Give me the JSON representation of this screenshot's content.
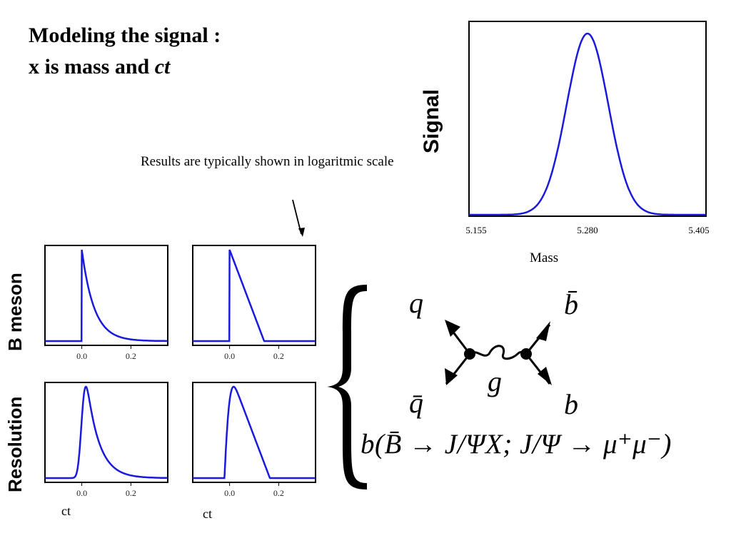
{
  "title": {
    "line1": "Modeling the signal :",
    "line2_prefix": "x is mass and ",
    "line2_italic": "ct"
  },
  "note": "Results are  typically shown in logaritmic scale",
  "labels": {
    "signal": "Signal",
    "mass": "Mass",
    "b_meson": "B meson",
    "resolution": "Resolution",
    "ct_left": "ct",
    "ct_right": "ct"
  },
  "formula": {
    "q": "q",
    "bbar": "b̄",
    "g": "g",
    "qbar": "q̄",
    "b": "b",
    "decay": "b(B̄ → J/ΨX; J/Ψ → μ⁺μ⁻)"
  },
  "colors": {
    "curve": "#1a1adc",
    "axis": "#000000"
  },
  "chart_data": [
    {
      "type": "line",
      "ylabel": "Signal",
      "xlabel": "Mass",
      "xlim": [
        5.155,
        5.405
      ],
      "x_ticks": [
        "5.155",
        "5.280",
        "5.405"
      ],
      "series": [
        {
          "shape": "gaussian",
          "mean": 5.28,
          "sigma": 0.022
        }
      ]
    },
    {
      "type": "line",
      "ylabel": "B meson",
      "scale": "linear",
      "xlim": [
        -0.15,
        0.35
      ],
      "x_ticks": [
        "0.0",
        "0.2"
      ],
      "series": [
        {
          "shape": "exponential",
          "start": 0.0,
          "tau": 0.05
        }
      ]
    },
    {
      "type": "line",
      "ylabel": "B meson",
      "scale": "log",
      "xlim": [
        -0.15,
        0.35
      ],
      "x_ticks": [
        "0.0",
        "0.2"
      ],
      "series": [
        {
          "shape": "exponential",
          "start": 0.0,
          "tau": 0.05
        }
      ]
    },
    {
      "type": "line",
      "ylabel": "Resolution",
      "xlabel": "ct",
      "scale": "linear",
      "xlim": [
        -0.15,
        0.35
      ],
      "x_ticks": [
        "0.0",
        "0.2"
      ],
      "series": [
        {
          "shape": "exponential-convolved-gaussian",
          "tau": 0.05,
          "sigma": 0.012
        }
      ]
    },
    {
      "type": "line",
      "ylabel": "Resolution",
      "xlabel": "ct",
      "scale": "log",
      "xlim": [
        -0.15,
        0.35
      ],
      "x_ticks": [
        "0.0",
        "0.2"
      ],
      "series": [
        {
          "shape": "exponential-convolved-gaussian",
          "tau": 0.05,
          "sigma": 0.012
        }
      ]
    }
  ]
}
